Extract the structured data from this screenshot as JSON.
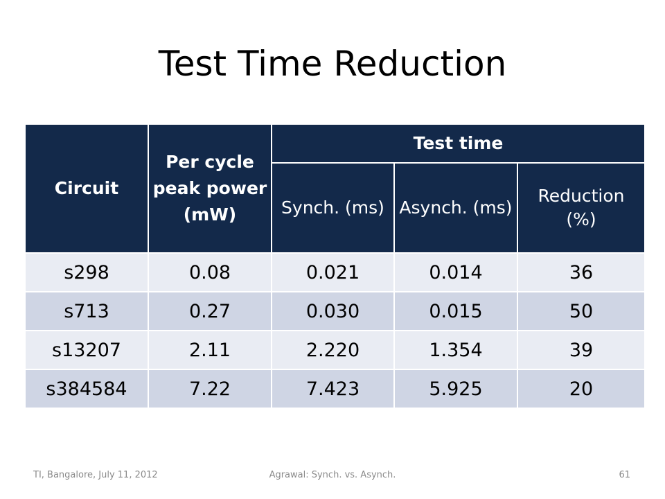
{
  "slide": {
    "title": "Test Time Reduction"
  },
  "table": {
    "headers": {
      "circuit": "Circuit",
      "power": "Per cycle peak power (mW)",
      "test_time": "Test time",
      "synch": "Synch. (ms)",
      "asynch": "Asynch. (ms)",
      "reduction": "Reduction (%)"
    },
    "rows": [
      {
        "circuit": "s298",
        "power": "0.08",
        "synch": "0.021",
        "asynch": "0.014",
        "reduction": "36"
      },
      {
        "circuit": "s713",
        "power": "0.27",
        "synch": "0.030",
        "asynch": "0.015",
        "reduction": "50"
      },
      {
        "circuit": "s13207",
        "power": "2.11",
        "synch": "2.220",
        "asynch": "1.354",
        "reduction": "39"
      },
      {
        "circuit": "s384584",
        "power": "7.22",
        "synch": "7.423",
        "asynch": "5.925",
        "reduction": "20"
      }
    ]
  },
  "footer": {
    "left": "TI, Bangalore, July 11, 2012",
    "center": "Agrawal: Synch. vs. Asynch.",
    "page_number": "61"
  },
  "colors": {
    "header_bg": "#13294a",
    "row_light": "#e9ecf3",
    "row_dark": "#cfd5e4"
  }
}
